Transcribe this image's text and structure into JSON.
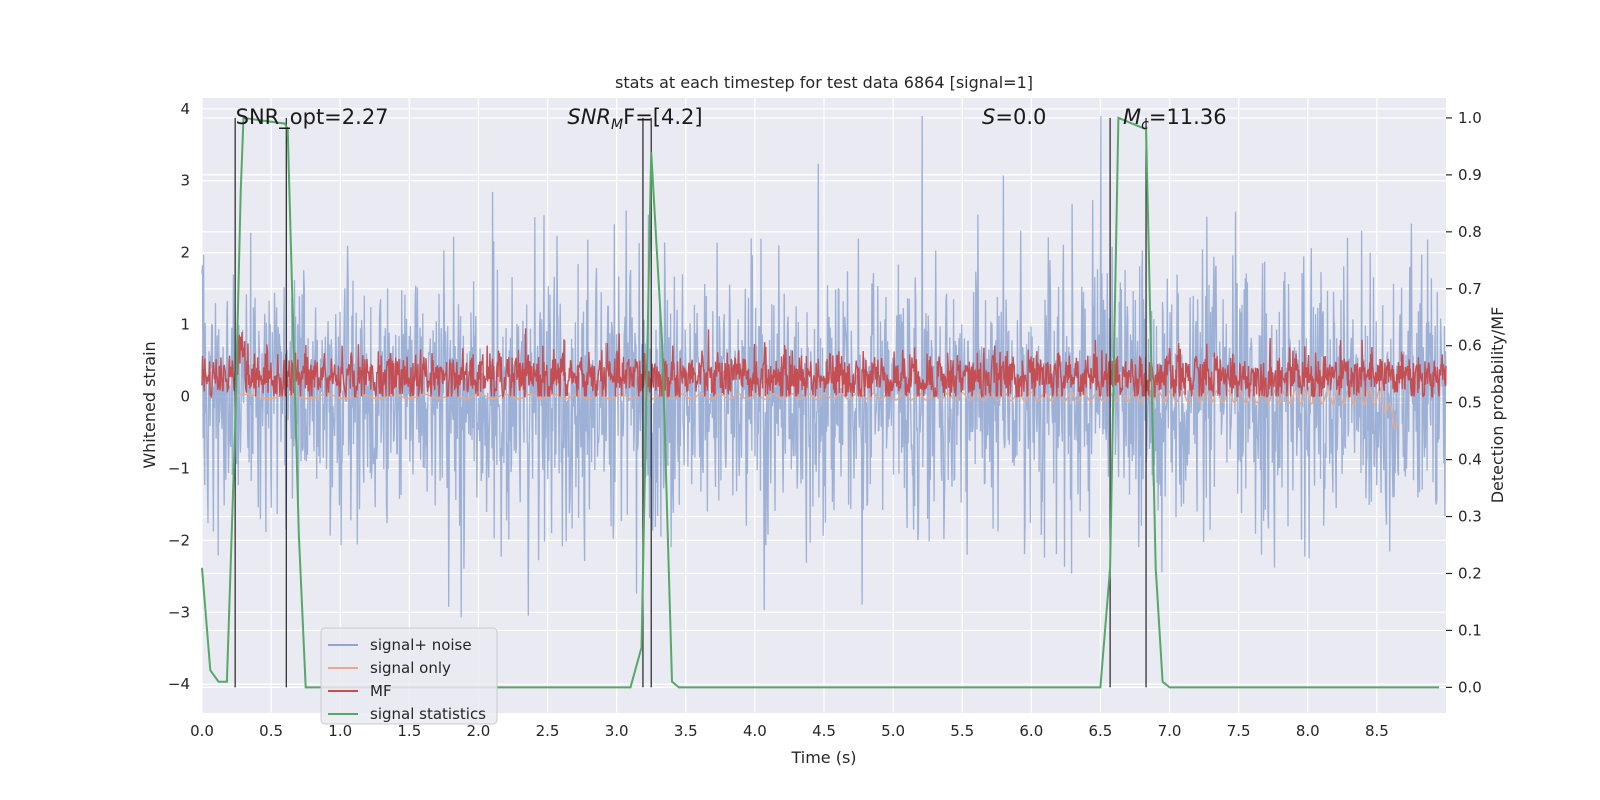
{
  "chart_data": {
    "type": "line",
    "title": "stats at each timestep for test data 6864 [signal=1]",
    "xlabel": "Time (s)",
    "ylabel": "Whitened strain",
    "ylabel_right": "Detection probability/MF",
    "xlim": [
      0,
      9.0
    ],
    "ylim": [
      -4.4,
      4.15
    ],
    "ylim_right": [
      -0.045,
      1.035
    ],
    "x_ticks": [
      0.0,
      0.5,
      1.0,
      1.5,
      2.0,
      2.5,
      3.0,
      3.5,
      4.0,
      4.5,
      5.0,
      5.5,
      6.0,
      6.5,
      7.0,
      7.5,
      8.0,
      8.5
    ],
    "x_tick_labels": [
      "0.0",
      "0.5",
      "1.0",
      "1.5",
      "2.0",
      "2.5",
      "3.0",
      "3.5",
      "4.0",
      "4.5",
      "5.0",
      "5.5",
      "6.0",
      "6.5",
      "7.0",
      "7.5",
      "8.0",
      "8.5"
    ],
    "y_ticks": [
      -4,
      -3,
      -2,
      -1,
      0,
      1,
      2,
      3,
      4
    ],
    "y_tick_labels": [
      "−4",
      "−3",
      "−2",
      "−1",
      "0",
      "1",
      "2",
      "3",
      "4"
    ],
    "y_ticks_right": [
      0.0,
      0.1,
      0.2,
      0.3,
      0.4,
      0.5,
      0.6,
      0.7,
      0.8,
      0.9,
      1.0
    ],
    "y_tick_labels_right": [
      "0.0",
      "0.1",
      "0.2",
      "0.3",
      "0.4",
      "0.5",
      "0.6",
      "0.7",
      "0.8",
      "0.9",
      "1.0"
    ],
    "grid": true,
    "legend_position": "lower-left",
    "legend": [
      {
        "label": "signal+ noise",
        "color": "#8fa6d1"
      },
      {
        "label": "signal only",
        "color": "#e8a98c"
      },
      {
        "label": "MF",
        "color": "#c44e52"
      },
      {
        "label": "signal statistics",
        "color": "#55a868"
      }
    ],
    "annotations": [
      {
        "prefix": "SNR_opt=2.27",
        "sub": "",
        "suffix": "",
        "italic": false,
        "x": 0.2
      },
      {
        "prefix": "SNR",
        "sub": "M",
        "suffix": "F=[4.2]",
        "italic": true,
        "x": 2.6
      },
      {
        "prefix": "S",
        "sub": "",
        "suffix": "=0.0",
        "italic": true,
        "x": 5.6
      },
      {
        "prefix": "M",
        "sub": "c",
        "suffix": "=11.36",
        "italic": true,
        "x": 6.62
      }
    ],
    "vertical_lines_x": [
      0.24,
      0.61,
      3.19,
      3.25,
      6.57,
      6.83
    ],
    "series": [
      {
        "name": "signal statistics",
        "axis": "right",
        "x": [
          0.0,
          0.06,
          0.12,
          0.18,
          0.24,
          0.28,
          0.3,
          0.6,
          0.62,
          0.7,
          0.75,
          0.8,
          0.85,
          3.1,
          3.18,
          3.25,
          3.33,
          3.4,
          3.45,
          6.5,
          6.57,
          6.63,
          6.83,
          6.9,
          6.95,
          7.0,
          8.95
        ],
        "y": [
          0.21,
          0.03,
          0.01,
          0.01,
          0.46,
          0.87,
          1.0,
          0.99,
          0.98,
          0.27,
          0.0,
          0.0,
          0.0,
          0.0,
          0.07,
          0.94,
          0.6,
          0.01,
          0.0,
          0.0,
          0.21,
          1.0,
          0.98,
          0.21,
          0.01,
          0.0,
          0.0
        ]
      }
    ],
    "signal_plus_noise_std": 0.92,
    "mf_baseline": 0.27,
    "signal_only_x_range": [
      0.24,
      8.65
    ]
  }
}
